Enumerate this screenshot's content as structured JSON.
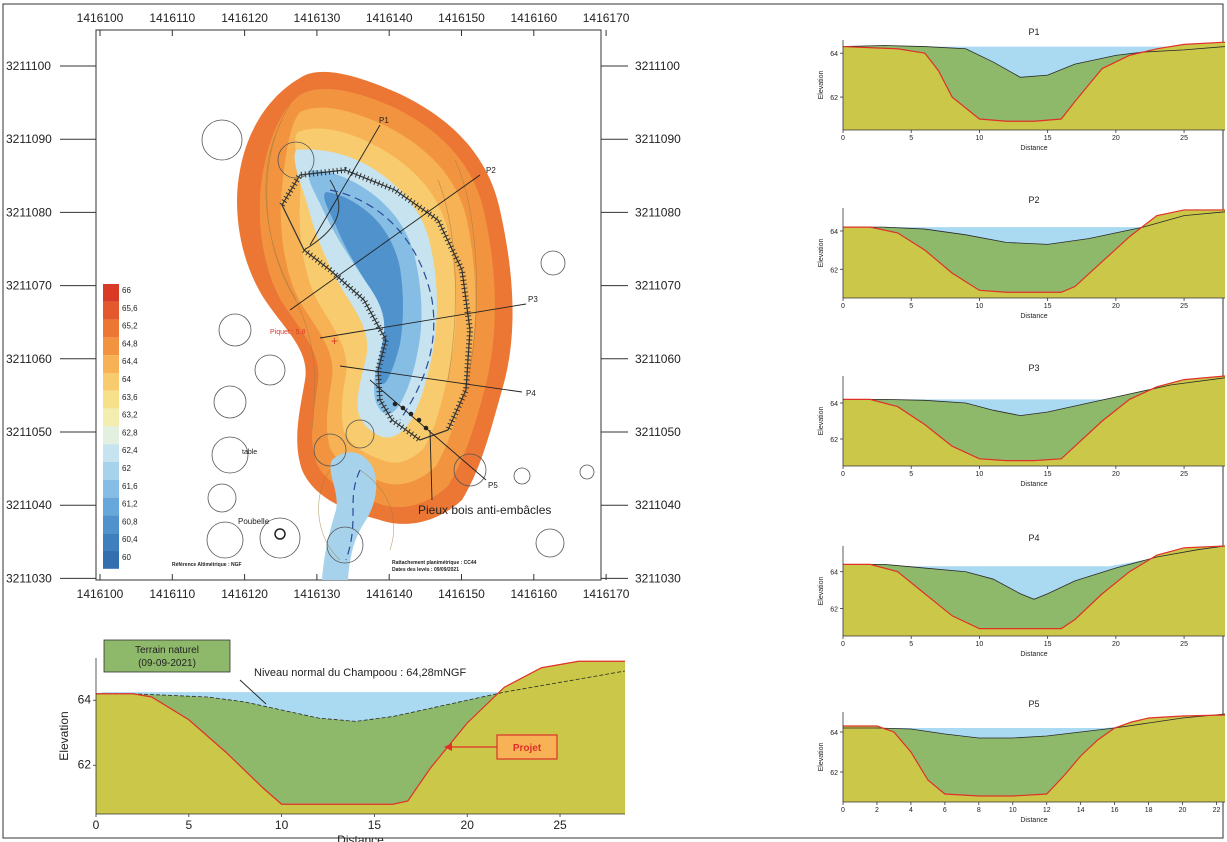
{
  "map": {
    "x_ticks": [
      "1416100",
      "1416110",
      "1416120",
      "1416130",
      "1416140",
      "1416150",
      "1416160",
      "1416170"
    ],
    "y_ticks": [
      "3211100",
      "3211090",
      "3211080",
      "3211070",
      "3211060",
      "3211050",
      "3211040",
      "3211030"
    ],
    "profile_labels": [
      "P1",
      "P2",
      "P3",
      "P4",
      "P5"
    ],
    "piquet_label": "Piquet : 5.8",
    "annotation": "Pieux bois anti-embâcles",
    "table_label": "table",
    "poubelle_label": "Poubelle",
    "ref_note": "Référence Altimétrique : NGF",
    "survey_note_1": "Rattachement planimétrique : CC44",
    "survey_note_2": "Dates des levés : 09/09/2021",
    "legend_values": [
      "66",
      "65,6",
      "65,2",
      "64,8",
      "64,4",
      "64",
      "63,6",
      "63,2",
      "62,8",
      "62,4",
      "62",
      "61,6",
      "61,2",
      "60,8",
      "60,4",
      "60"
    ],
    "legend_colors": [
      "#d83a25",
      "#e4582d",
      "#ec7735",
      "#f2943f",
      "#f6b255",
      "#f8cc6e",
      "#f7e08c",
      "#f3edb0",
      "#e3f0df",
      "#c6e3ef",
      "#a6d2ec",
      "#86bde4",
      "#68a7d9",
      "#4f92cc",
      "#3f7fbe",
      "#336eae"
    ]
  },
  "colors": {
    "water": "#aad9f2",
    "channel": "#8fb96a",
    "bank": "#cbc748",
    "bank_light": "#e9d980",
    "project_line": "#e0302a"
  },
  "main_profile": {
    "legend_box": "Terrain naturel\n(09-09-2021)",
    "legend_box_line1": "Terrain naturel",
    "legend_box_line2": "(09-09-2021)",
    "water_label": "Niveau normal du Champoou : 64,28mNGF",
    "projet_label": "Projet",
    "xlabel": "Distance",
    "ylabel": "Elevation",
    "x_ticks": [
      "0",
      "5",
      "10",
      "15",
      "20",
      "25"
    ],
    "y_ticks": [
      "64",
      "62"
    ]
  },
  "chart_data": [
    {
      "type": "area",
      "title": "",
      "xlabel": "Distance",
      "ylabel": "Elevation",
      "xlim": [
        0,
        28.5
      ],
      "ylim": [
        60.5,
        65.3
      ],
      "series": [
        {
          "name": "Terrain naturel (09-09-2021)",
          "x": [
            0,
            2,
            4,
            6,
            8,
            10,
            12,
            14,
            16,
            18,
            20,
            22,
            24,
            26,
            28.5
          ],
          "y": [
            64.2,
            64.2,
            64.15,
            64.1,
            63.95,
            63.7,
            63.45,
            63.35,
            63.5,
            63.75,
            64.0,
            64.25,
            64.45,
            64.65,
            64.9
          ]
        },
        {
          "name": "Projet",
          "x": [
            0,
            2,
            3,
            5,
            7,
            9,
            10,
            12,
            14,
            16,
            16.8,
            18,
            20,
            22,
            24,
            26,
            28.5
          ],
          "y": [
            64.2,
            64.2,
            64.1,
            63.4,
            62.4,
            61.3,
            60.8,
            60.8,
            60.8,
            60.8,
            60.9,
            61.9,
            63.3,
            64.4,
            65.0,
            65.2,
            65.2
          ]
        }
      ],
      "annotations": [
        "Niveau normal du Champoou : 64,28mNGF",
        "Projet"
      ]
    },
    {
      "type": "area",
      "title": "P1",
      "xlabel": "Distance",
      "ylabel": "Elevation",
      "xlim": [
        0,
        28
      ],
      "ylim": [
        60.5,
        64.6
      ],
      "x_ticks": [
        "0",
        "5",
        "10",
        "15",
        "20",
        "25"
      ],
      "y_ticks": [
        "64",
        "62"
      ]
    },
    {
      "type": "area",
      "title": "P2",
      "xlabel": "Distance",
      "ylabel": "Elevation",
      "xlim": [
        0,
        28
      ],
      "ylim": [
        60.5,
        65.2
      ],
      "x_ticks": [
        "0",
        "5",
        "10",
        "15",
        "20",
        "25"
      ],
      "y_ticks": [
        "64",
        "62"
      ]
    },
    {
      "type": "area",
      "title": "P3",
      "xlabel": "Distance",
      "ylabel": "Elevation",
      "xlim": [
        0,
        28
      ],
      "ylim": [
        60.5,
        65.5
      ],
      "x_ticks": [
        "0",
        "5",
        "10",
        "15",
        "20",
        "25"
      ],
      "y_ticks": [
        "64",
        "62"
      ]
    },
    {
      "type": "area",
      "title": "P4",
      "xlabel": "Distance",
      "ylabel": "Elevation",
      "xlim": [
        0,
        28
      ],
      "ylim": [
        60.5,
        65.4
      ],
      "x_ticks": [
        "0",
        "5",
        "10",
        "15",
        "20",
        "25"
      ],
      "y_ticks": [
        "64",
        "62"
      ]
    },
    {
      "type": "area",
      "title": "P5",
      "xlabel": "Distance",
      "ylabel": "Elevation",
      "xlim": [
        0,
        22.5
      ],
      "ylim": [
        60.5,
        65.0
      ],
      "x_ticks": [
        "0",
        "2",
        "4",
        "6",
        "8",
        "10",
        "12",
        "14",
        "16",
        "18",
        "20",
        "22"
      ],
      "y_ticks": [
        "64",
        "62"
      ]
    }
  ]
}
